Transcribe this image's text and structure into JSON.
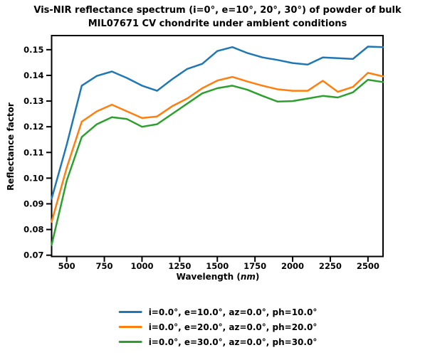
{
  "figure": {
    "title_line1": "Vis-NIR reflectance spectrum (i=0°, e=10°, 20°, 30°) of powder of bulk",
    "title_line2": "MIL07671 CV chondrite under ambient conditions",
    "background_color": "#ffffff",
    "text_color": "#000000"
  },
  "chart_data": {
    "type": "line",
    "title": "Vis-NIR reflectance spectrum (i=0°, e=10°, 20°, 30°) of powder of bulk MIL07671 CV chondrite under ambient conditions",
    "xlabel": "Wavelength (nm)",
    "xlabel_prefix": "Wavelength (",
    "xlabel_unit": "nm",
    "xlabel_suffix": ")",
    "ylabel": "Reflectance factor",
    "xlim": [
      400,
      2600
    ],
    "ylim": [
      0.0695,
      0.1555
    ],
    "xticks": [
      500,
      750,
      1000,
      1250,
      1500,
      1750,
      2000,
      2250,
      2500
    ],
    "yticks": [
      0.07,
      0.08,
      0.09,
      0.1,
      0.11,
      0.12,
      0.13,
      0.14,
      0.15
    ],
    "grid": false,
    "legend_position": "below-center",
    "x": [
      400,
      500,
      600,
      700,
      800,
      900,
      1000,
      1100,
      1200,
      1300,
      1400,
      1500,
      1600,
      1700,
      1800,
      1900,
      2000,
      2100,
      2200,
      2300,
      2400,
      2500,
      2600
    ],
    "series": [
      {
        "name": "i=0.0°, e=10.0°, az=0.0°, ph=10.0°",
        "color": "#1f77b4",
        "values": [
          0.092,
          0.113,
          0.136,
          0.1398,
          0.1415,
          0.139,
          0.136,
          0.134,
          0.1385,
          0.1425,
          0.1445,
          0.1495,
          0.151,
          0.1487,
          0.147,
          0.146,
          0.1448,
          0.1442,
          0.147,
          0.1467,
          0.1464,
          0.1512,
          0.151
        ]
      },
      {
        "name": "i=0.0°, e=20.0°, az=0.0°, ph=20.0°",
        "color": "#ff7f0e",
        "values": [
          0.083,
          0.104,
          0.122,
          0.126,
          0.1286,
          0.126,
          0.1234,
          0.124,
          0.128,
          0.131,
          0.135,
          0.138,
          0.1394,
          0.1376,
          0.136,
          0.1346,
          0.134,
          0.134,
          0.1379,
          0.1336,
          0.1355,
          0.141,
          0.1396
        ]
      },
      {
        "name": "i=0.0°, e=30.0°, az=0.0°, ph=30.0°",
        "color": "#2ca02c",
        "values": [
          0.074,
          0.099,
          0.116,
          0.121,
          0.1237,
          0.123,
          0.12,
          0.121,
          0.125,
          0.129,
          0.133,
          0.135,
          0.136,
          0.1344,
          0.132,
          0.1298,
          0.13,
          0.131,
          0.132,
          0.1314,
          0.1334,
          0.1383,
          0.1374
        ]
      }
    ]
  }
}
